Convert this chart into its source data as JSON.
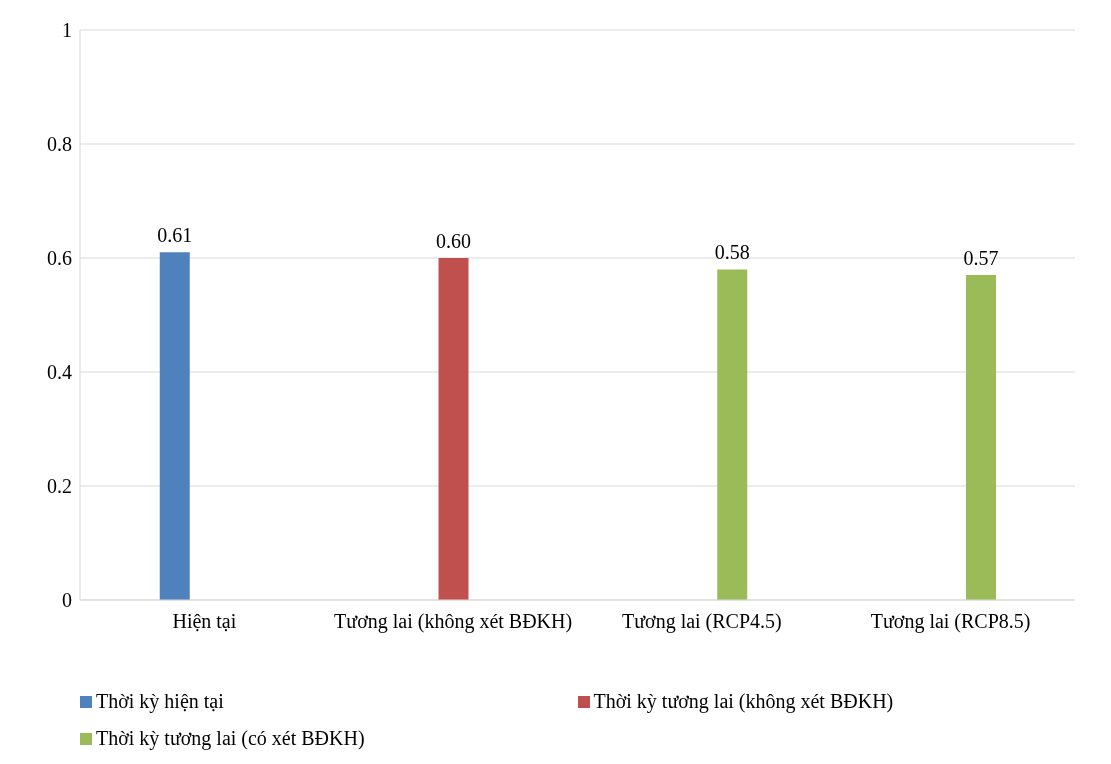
{
  "chart_data": {
    "type": "bar",
    "categories": [
      "Hiện tại",
      "Tương lai (không xét BĐKH)",
      "Tương lai (RCP4.5)",
      "Tương lai (RCP8.5)"
    ],
    "series": [
      {
        "name": "Thời kỳ hiện tại",
        "color": "#4f81bd",
        "values": [
          0.61,
          null,
          null,
          null
        ],
        "value_labels": [
          "0.61",
          null,
          null,
          null
        ]
      },
      {
        "name": "Thời kỳ tương lai (không xét BĐKH)",
        "color": "#c0504d",
        "values": [
          null,
          0.6,
          null,
          null
        ],
        "value_labels": [
          null,
          "0.60",
          null,
          null
        ]
      },
      {
        "name": "Thời kỳ tương lai (có xét BĐKH)",
        "color": "#9bbb59",
        "values": [
          null,
          null,
          0.58,
          0.57
        ],
        "value_labels": [
          null,
          null,
          "0.58",
          "0.57"
        ]
      }
    ],
    "ylim": [
      0,
      1
    ],
    "yticks": [
      0,
      0.2,
      0.4,
      0.6,
      0.8,
      1
    ],
    "grid": "y",
    "legend": "bottom"
  }
}
